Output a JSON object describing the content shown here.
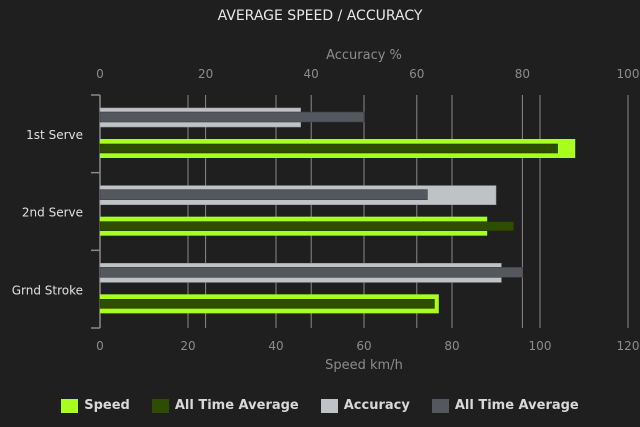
{
  "chart_data": {
    "type": "bar",
    "orientation": "horizontal",
    "title": "AVERAGE SPEED / ACCURACY",
    "categories": [
      "1st Serve",
      "2nd Serve",
      "Grnd Stroke"
    ],
    "x_top_axis": {
      "label": "Accuracy %",
      "range": [
        0,
        100
      ],
      "ticks": [
        0,
        20,
        40,
        60,
        80,
        100
      ]
    },
    "x_bottom_axis": {
      "label": "Speed km/h",
      "range": [
        0,
        120
      ],
      "ticks": [
        0,
        20,
        40,
        60,
        80,
        100,
        120
      ]
    },
    "grid": true,
    "legend_position": "bottom",
    "series": [
      {
        "name": "Speed",
        "axis": "bottom",
        "color": "#a8ff1f",
        "values": [
          108,
          88,
          77
        ]
      },
      {
        "name": "All Time Average",
        "axis": "bottom",
        "color": "#2f4d00",
        "values": [
          104,
          94,
          76
        ]
      },
      {
        "name": "Accuracy",
        "axis": "top",
        "color": "#c0c3c6",
        "values": [
          38,
          75,
          76
        ]
      },
      {
        "name": "All Time Average",
        "axis": "top",
        "color": "#54575d",
        "values": [
          50,
          62,
          80
        ]
      }
    ]
  }
}
